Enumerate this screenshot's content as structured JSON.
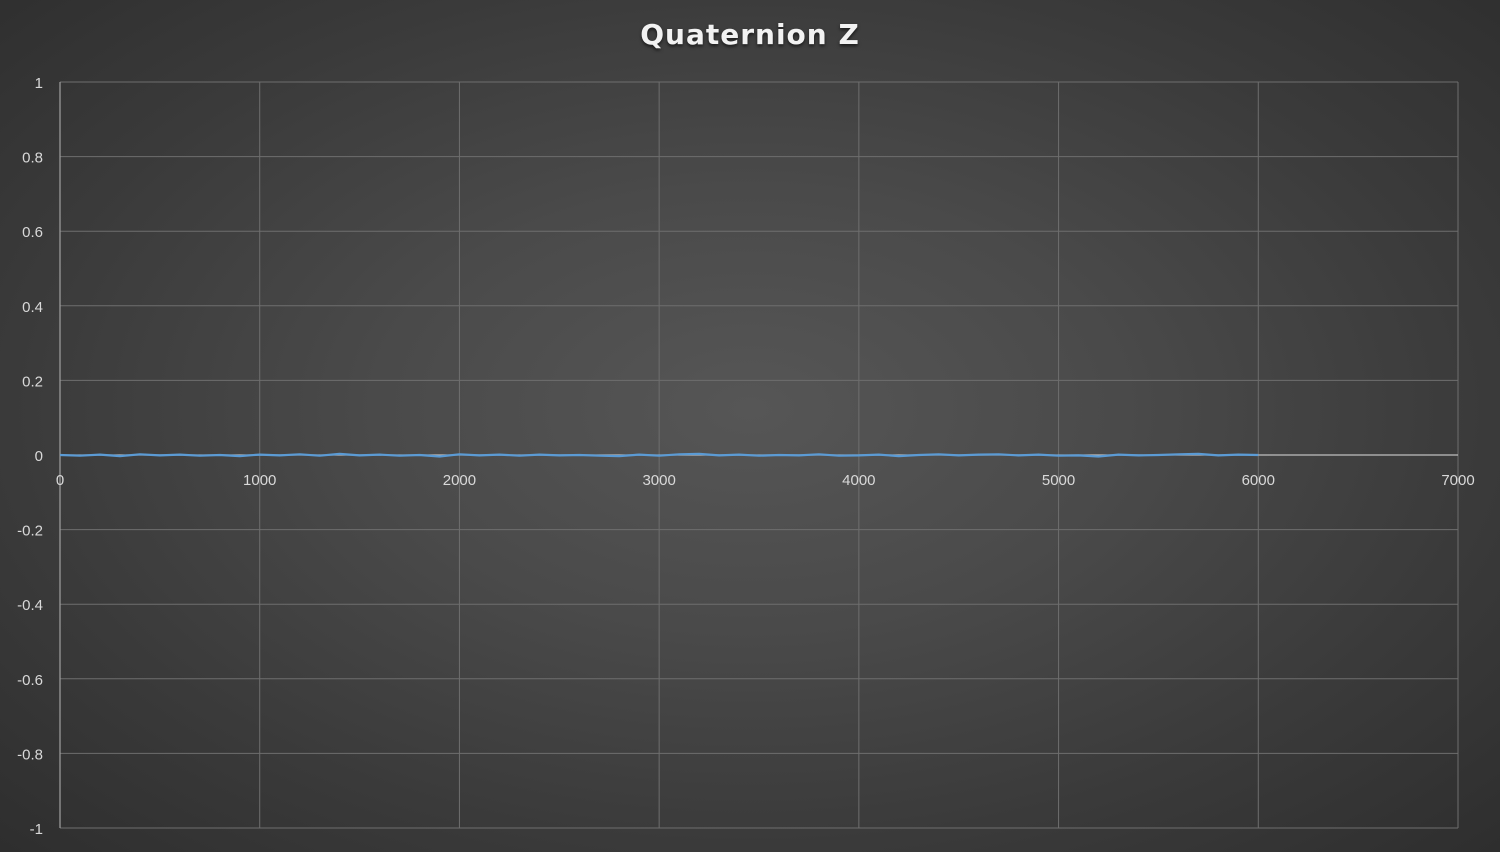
{
  "chart_data": {
    "type": "line",
    "title": "Quaternion Z",
    "xlabel": "",
    "ylabel": "",
    "xlim": [
      0,
      7000
    ],
    "ylim": [
      -1,
      1
    ],
    "x_ticks": [
      0,
      1000,
      2000,
      3000,
      4000,
      5000,
      6000,
      7000
    ],
    "y_ticks": [
      1,
      0.8,
      0.6,
      0.4,
      0.2,
      0,
      -0.2,
      -0.4,
      -0.6,
      -0.8,
      -1
    ],
    "x_tick_labels": [
      "0",
      "1000",
      "2000",
      "3000",
      "4000",
      "5000",
      "6000",
      "7000"
    ],
    "y_tick_labels": [
      "1",
      "0.8",
      "0.6",
      "0.4",
      "0.2",
      "0",
      "-0.2",
      "-0.4",
      "-0.6",
      "-0.8",
      "-1"
    ],
    "grid": true,
    "legend": "none",
    "series": [
      {
        "color": "#5b9bd5",
        "x": [
          0,
          100,
          200,
          300,
          400,
          500,
          600,
          700,
          800,
          900,
          1000,
          1100,
          1200,
          1300,
          1400,
          1500,
          1600,
          1700,
          1800,
          1900,
          2000,
          2100,
          2200,
          2300,
          2400,
          2500,
          2600,
          2700,
          2800,
          2900,
          3000,
          3100,
          3200,
          3300,
          3400,
          3500,
          3600,
          3700,
          3800,
          3900,
          4000,
          4100,
          4200,
          4300,
          4400,
          4500,
          4600,
          4700,
          4800,
          4900,
          5000,
          5100,
          5200,
          5300,
          5400,
          5500,
          5600,
          5700,
          5800,
          5900,
          6000
        ],
        "y": [
          0.0,
          -0.002,
          0.001,
          -0.003,
          0.002,
          -0.001,
          0.001,
          -0.002,
          0.0,
          -0.003,
          0.001,
          -0.001,
          0.002,
          -0.002,
          0.003,
          -0.001,
          0.001,
          -0.002,
          0.0,
          -0.004,
          0.002,
          -0.001,
          0.001,
          -0.002,
          0.001,
          -0.001,
          0.0,
          -0.002,
          -0.003,
          0.001,
          -0.002,
          0.002,
          0.003,
          -0.001,
          0.001,
          -0.002,
          0.0,
          -0.001,
          0.002,
          -0.002,
          -0.001,
          0.001,
          -0.003,
          0.0,
          0.002,
          -0.001,
          0.001,
          0.002,
          -0.001,
          0.001,
          -0.002,
          -0.001,
          -0.004,
          0.001,
          -0.001,
          0.0,
          0.002,
          0.003,
          -0.001,
          0.001,
          0.0
        ]
      }
    ]
  }
}
